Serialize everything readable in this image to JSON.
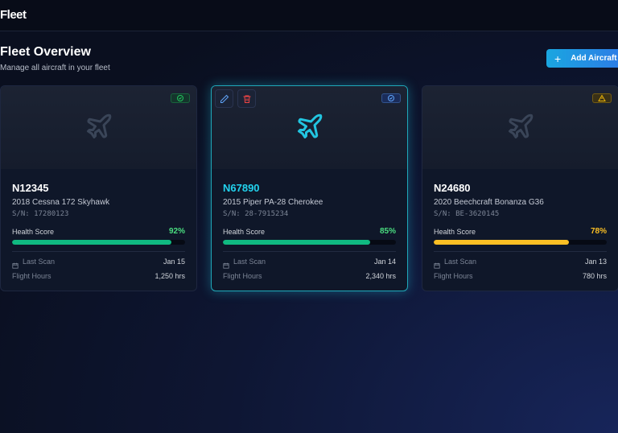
{
  "header": {
    "title": "Fleet"
  },
  "page": {
    "title": "Fleet Overview",
    "subtitle": "Manage all aircraft in your fleet",
    "button": "Add Aircraft"
  },
  "labels": {
    "health": "Health Score",
    "last_scan": "Last Scan",
    "flight_hours": "Flight Hours"
  },
  "cards": [
    {
      "tail": "N12345",
      "model": "2018 Cessna 172 Skyhawk",
      "serial": "S/N: 17280123",
      "health": 92,
      "health_label": "92%",
      "last_scan": "Jan 15",
      "hours": "1,250 hrs",
      "status": "ok"
    },
    {
      "tail": "N67890",
      "model": "2015 Piper PA-28 Cherokee",
      "serial": "S/N: 28-7915234",
      "health": 85,
      "health_label": "85%",
      "last_scan": "Jan 14",
      "hours": "2,340 hrs",
      "status": "info"
    },
    {
      "tail": "N24680",
      "model": "2020 Beechcraft Bonanza G36",
      "serial": "S/N: BE-3620145",
      "health": 78,
      "health_label": "78%",
      "last_scan": "Jan 13",
      "hours": "780 hrs",
      "status": "warn"
    }
  ]
}
